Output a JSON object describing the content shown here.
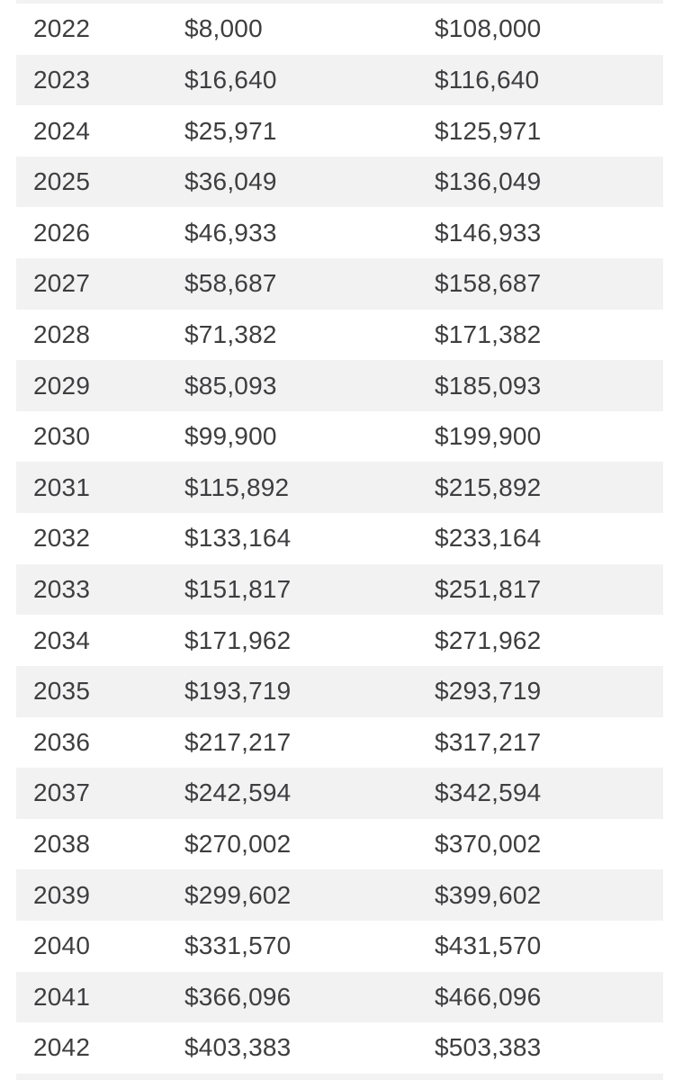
{
  "colors": {
    "page_background": "#ffffff",
    "row_background": "#ffffff",
    "row_alt_background": "#f2f2f3",
    "text": "#3e3e40"
  },
  "table": {
    "columns": [
      "year",
      "amount1",
      "amount2"
    ],
    "rows": [
      {
        "year": "2022",
        "amount1": "$8,000",
        "amount2": "$108,000"
      },
      {
        "year": "2023",
        "amount1": "$16,640",
        "amount2": "$116,640"
      },
      {
        "year": "2024",
        "amount1": "$25,971",
        "amount2": "$125,971"
      },
      {
        "year": "2025",
        "amount1": "$36,049",
        "amount2": "$136,049"
      },
      {
        "year": "2026",
        "amount1": "$46,933",
        "amount2": "$146,933"
      },
      {
        "year": "2027",
        "amount1": "$58,687",
        "amount2": "$158,687"
      },
      {
        "year": "2028",
        "amount1": "$71,382",
        "amount2": "$171,382"
      },
      {
        "year": "2029",
        "amount1": "$85,093",
        "amount2": "$185,093"
      },
      {
        "year": "2030",
        "amount1": "$99,900",
        "amount2": "$199,900"
      },
      {
        "year": "2031",
        "amount1": "$115,892",
        "amount2": "$215,892"
      },
      {
        "year": "2032",
        "amount1": "$133,164",
        "amount2": "$233,164"
      },
      {
        "year": "2033",
        "amount1": "$151,817",
        "amount2": "$251,817"
      },
      {
        "year": "2034",
        "amount1": "$171,962",
        "amount2": "$271,962"
      },
      {
        "year": "2035",
        "amount1": "$193,719",
        "amount2": "$293,719"
      },
      {
        "year": "2036",
        "amount1": "$217,217",
        "amount2": "$317,217"
      },
      {
        "year": "2037",
        "amount1": "$242,594",
        "amount2": "$342,594"
      },
      {
        "year": "2038",
        "amount1": "$270,002",
        "amount2": "$370,002"
      },
      {
        "year": "2039",
        "amount1": "$299,602",
        "amount2": "$399,602"
      },
      {
        "year": "2040",
        "amount1": "$331,570",
        "amount2": "$431,570"
      },
      {
        "year": "2041",
        "amount1": "$366,096",
        "amount2": "$466,096"
      },
      {
        "year": "2042",
        "amount1": "$403,383",
        "amount2": "$503,383"
      }
    ]
  }
}
